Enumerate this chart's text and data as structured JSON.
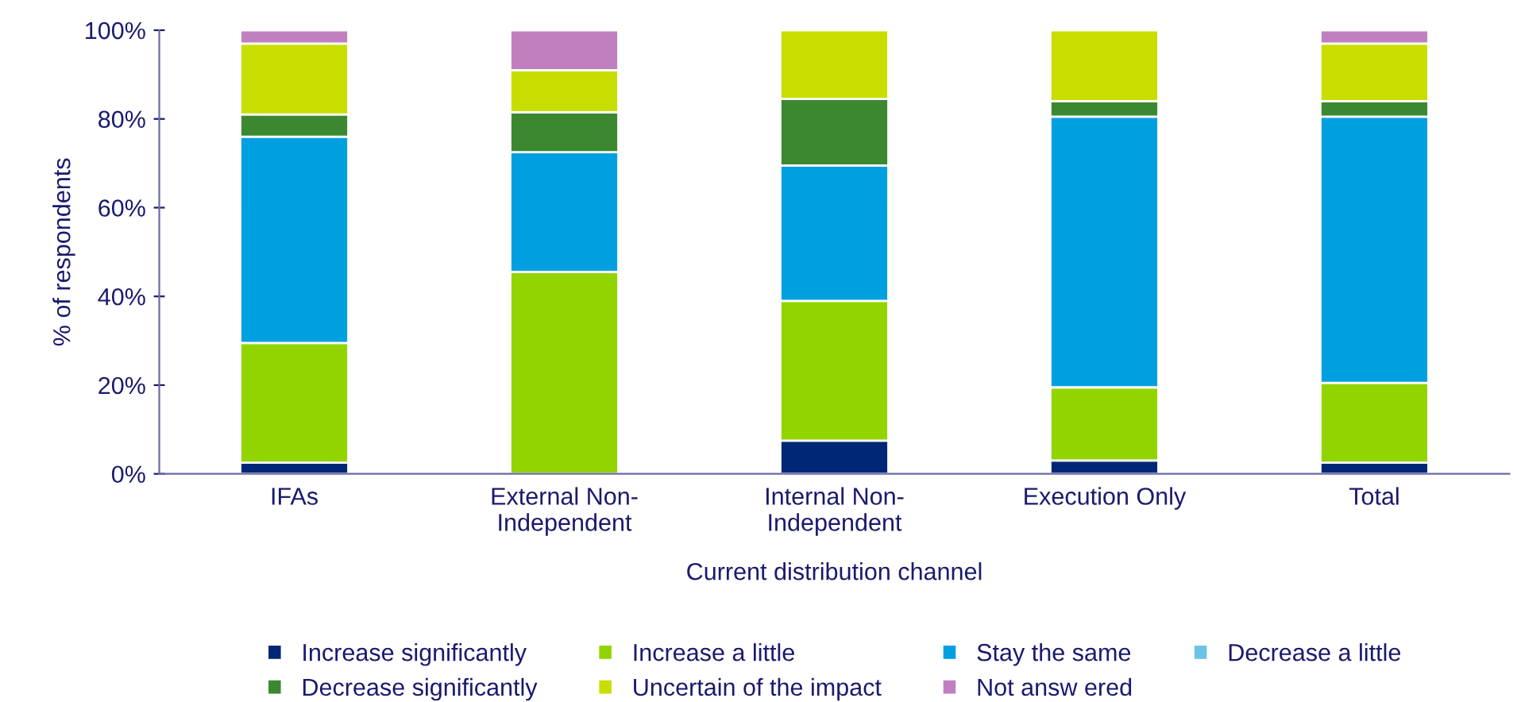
{
  "chart_data": {
    "type": "bar",
    "stacked": true,
    "xlabel": "Current distribution channel",
    "ylabel": "% of respondents",
    "categories": [
      "IFAs",
      "External Non-\nIndependent",
      "Internal Non-\nIndependent",
      "Execution Only",
      "Total"
    ],
    "ylim": [
      0,
      100
    ],
    "yticks": [
      {
        "value": 0,
        "label": "0%"
      },
      {
        "value": 20,
        "label": "20%"
      },
      {
        "value": 40,
        "label": "40%"
      },
      {
        "value": 60,
        "label": "60%"
      },
      {
        "value": 80,
        "label": "80%"
      },
      {
        "value": 100,
        "label": "100%"
      }
    ],
    "grid": false,
    "legend": "bottom",
    "series": [
      {
        "name": "Increase significantly",
        "color": "#002776",
        "values": [
          2.5,
          0,
          7.5,
          3,
          2.5
        ]
      },
      {
        "name": "Increase a little",
        "color": "#92d400",
        "values": [
          27,
          45.5,
          31.5,
          16.5,
          18
        ]
      },
      {
        "name": "Stay the same",
        "color": "#00a0e0",
        "values": [
          46.5,
          27,
          30.5,
          61,
          60
        ]
      },
      {
        "name": "Decrease a little",
        "color": "#6cc3e8",
        "values": [
          0,
          0,
          0,
          0,
          0
        ]
      },
      {
        "name": "Decrease significantly",
        "color": "#3b8830",
        "values": [
          5,
          9,
          15,
          3.5,
          3.5
        ]
      },
      {
        "name": "Uncertain of the impact",
        "color": "#c8de00",
        "values": [
          16,
          9.5,
          15.5,
          16,
          13
        ]
      },
      {
        "name": "Not answ ered",
        "color": "#c080c0",
        "values": [
          3,
          9,
          0,
          0,
          3
        ]
      }
    ]
  }
}
